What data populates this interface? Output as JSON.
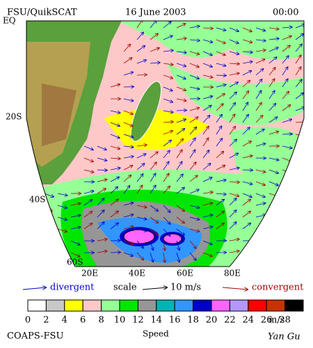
{
  "header": {
    "left": "FSU/QuikSCAT",
    "center": "16 June 2003",
    "right": "00:00"
  },
  "map": {
    "lat_labels": [
      "EQ",
      "20S",
      "40S",
      "60S"
    ],
    "lon_labels": [
      "20E",
      "40E",
      "60E",
      "80E"
    ]
  },
  "legend": {
    "divergent": "divergent",
    "scale": "scale",
    "scale_value": "10 m/s",
    "convergent": "convergent"
  },
  "colorbar": {
    "ticks": [
      "0",
      "2",
      "4",
      "6",
      "8",
      "10",
      "12",
      "14",
      "16",
      "18",
      "20",
      "22",
      "24",
      "26",
      "28"
    ],
    "unit": "m/s",
    "colors": [
      "#ffffff",
      "#c8c8c8",
      "#ffff00",
      "#ffc8c8",
      "#96ff96",
      "#00e600",
      "#969696",
      "#00b4b4",
      "#3296ff",
      "#0000c8",
      "#ff64ff",
      "#b496ff",
      "#ff0000",
      "#c83200",
      "#000000"
    ]
  },
  "footer": {
    "left": "COAPS-FSU",
    "center": "Speed",
    "right": "Yan Gu"
  }
}
